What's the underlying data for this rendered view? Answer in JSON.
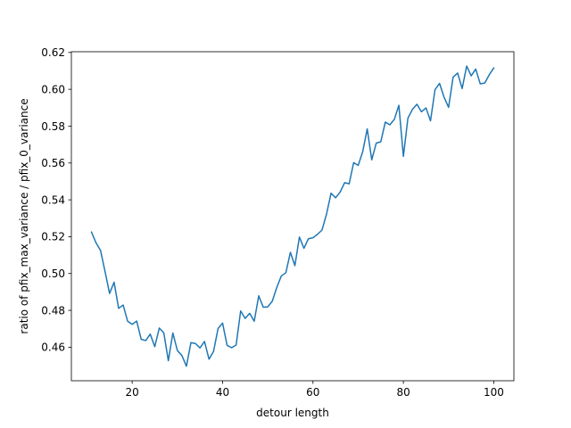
{
  "chart_data": {
    "type": "line",
    "xlabel": "detour length",
    "ylabel": "ratio of pfix_max_variance / pfix_0_variance",
    "xlim": [
      6.55,
      104.45
    ],
    "ylim": [
      0.4418,
      0.6204
    ],
    "xticks": [
      20,
      40,
      60,
      80,
      100
    ],
    "yticks": [
      0.46,
      0.48,
      0.5,
      0.52,
      0.54,
      0.56,
      0.58,
      0.6,
      0.62
    ],
    "ytick_labels": [
      "0.46",
      "0.48",
      "0.50",
      "0.52",
      "0.54",
      "0.56",
      "0.58",
      "0.60",
      "0.62"
    ],
    "grid": false,
    "series": [
      {
        "color": "#1f77b4",
        "x": [
          11,
          12,
          13,
          14,
          15,
          16,
          17,
          18,
          19,
          20,
          21,
          22,
          23,
          24,
          25,
          26,
          27,
          28,
          29,
          30,
          31,
          32,
          33,
          34,
          35,
          36,
          37,
          38,
          39,
          40,
          41,
          42,
          43,
          44,
          45,
          46,
          47,
          48,
          49,
          50,
          51,
          52,
          53,
          54,
          55,
          56,
          57,
          58,
          59,
          60,
          61,
          62,
          63,
          64,
          65,
          66,
          67,
          68,
          69,
          70,
          71,
          72,
          73,
          74,
          75,
          76,
          77,
          78,
          79,
          80,
          81,
          82,
          83,
          84,
          85,
          86,
          87,
          88,
          89,
          90,
          91,
          92,
          93,
          94,
          95,
          96,
          97,
          98,
          99,
          100
        ],
        "values": [
          0.5225,
          0.5167,
          0.5125,
          0.5011,
          0.4892,
          0.4953,
          0.4811,
          0.4829,
          0.4741,
          0.4724,
          0.4742,
          0.4643,
          0.4636,
          0.4671,
          0.4603,
          0.4704,
          0.4678,
          0.4527,
          0.4677,
          0.4582,
          0.4555,
          0.4497,
          0.4625,
          0.462,
          0.4596,
          0.4631,
          0.4535,
          0.4577,
          0.4701,
          0.4731,
          0.461,
          0.4597,
          0.4612,
          0.4797,
          0.4756,
          0.4784,
          0.4741,
          0.4879,
          0.4817,
          0.4819,
          0.485,
          0.4925,
          0.4987,
          0.5004,
          0.5115,
          0.5043,
          0.5198,
          0.5137,
          0.5189,
          0.5194,
          0.5213,
          0.5236,
          0.5323,
          0.5436,
          0.5411,
          0.5442,
          0.5493,
          0.5487,
          0.5602,
          0.5587,
          0.5661,
          0.5785,
          0.5617,
          0.5708,
          0.5715,
          0.5822,
          0.5807,
          0.5837,
          0.5913,
          0.5636,
          0.5843,
          0.5891,
          0.5919,
          0.5878,
          0.5899,
          0.5829,
          0.5998,
          0.6032,
          0.5957,
          0.5902,
          0.6066,
          0.6088,
          0.6004,
          0.6126,
          0.6073,
          0.611,
          0.603,
          0.6034,
          0.6079,
          0.6116
        ]
      }
    ]
  }
}
